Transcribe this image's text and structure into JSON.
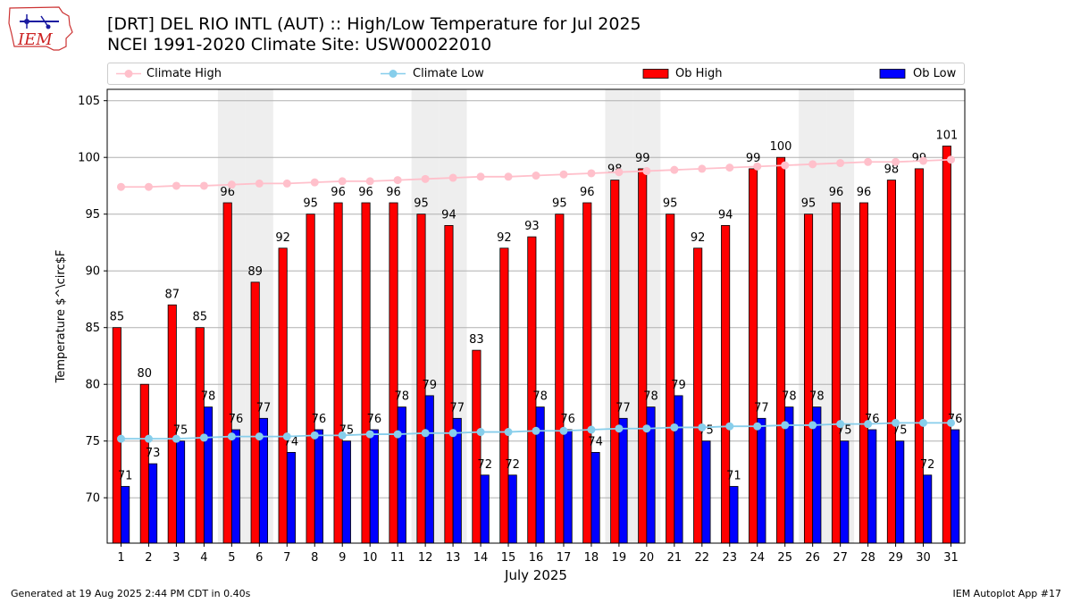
{
  "header": {
    "title": "[DRT] DEL RIO INTL (AUT) :: High/Low Temperature for Jul 2025",
    "subtitle": "NCEI 1991-2020 Climate Site: USW00022010",
    "logo_text": "IEM"
  },
  "footer": {
    "left": "Generated at 19 Aug 2025 2:44 PM CDT in 0.40s",
    "right": "IEM Autoplot App #17"
  },
  "legend": {
    "items": [
      {
        "label": "Climate High",
        "color": "#ffc0cb",
        "kind": "line"
      },
      {
        "label": "Climate Low",
        "color": "#87ceeb",
        "kind": "line"
      },
      {
        "label": "Ob High",
        "color": "#ff0000",
        "kind": "bar"
      },
      {
        "label": "Ob Low",
        "color": "#0000ff",
        "kind": "bar"
      }
    ]
  },
  "chart_data": {
    "type": "bar",
    "xlabel": "July 2025",
    "ylabel": "Temperature $^\\circ$F",
    "ylim": [
      66,
      106
    ],
    "yticks": [
      70,
      75,
      80,
      85,
      90,
      95,
      100,
      105
    ],
    "categories": [
      "1",
      "2",
      "3",
      "4",
      "5",
      "6",
      "7",
      "8",
      "9",
      "10",
      "11",
      "12",
      "13",
      "14",
      "15",
      "16",
      "17",
      "18",
      "19",
      "20",
      "21",
      "22",
      "23",
      "24",
      "25",
      "26",
      "27",
      "28",
      "29",
      "30",
      "31"
    ],
    "weekend_shading_days": [
      5,
      6,
      12,
      13,
      19,
      20,
      26,
      27
    ],
    "grid": "horizontal",
    "legend_position": "top",
    "series": [
      {
        "name": "Ob High",
        "type": "bar",
        "color": "#ff0000",
        "values": [
          85,
          80,
          87,
          85,
          96,
          89,
          92,
          95,
          96,
          96,
          96,
          95,
          94,
          83,
          92,
          93,
          95,
          96,
          98,
          99,
          95,
          92,
          94,
          99,
          100,
          95,
          96,
          96,
          98,
          99,
          101
        ]
      },
      {
        "name": "Ob Low",
        "type": "bar",
        "color": "#0000ff",
        "values": [
          71,
          73,
          75,
          78,
          76,
          77,
          74,
          76,
          75,
          76,
          78,
          79,
          77,
          72,
          72,
          78,
          76,
          74,
          77,
          78,
          79,
          75,
          71,
          77,
          78,
          78,
          75,
          76,
          75,
          72,
          76
        ]
      },
      {
        "name": "Climate High",
        "type": "line",
        "color": "#ffc0cb",
        "values": [
          97.4,
          97.4,
          97.5,
          97.5,
          97.6,
          97.7,
          97.7,
          97.8,
          97.9,
          97.9,
          98.0,
          98.1,
          98.2,
          98.3,
          98.3,
          98.4,
          98.5,
          98.6,
          98.7,
          98.8,
          98.9,
          99.0,
          99.1,
          99.2,
          99.3,
          99.4,
          99.5,
          99.6,
          99.6,
          99.7,
          99.8
        ]
      },
      {
        "name": "Climate Low",
        "type": "line",
        "color": "#87ceeb",
        "values": [
          75.2,
          75.2,
          75.2,
          75.3,
          75.4,
          75.4,
          75.4,
          75.5,
          75.5,
          75.6,
          75.6,
          75.7,
          75.7,
          75.8,
          75.8,
          75.9,
          75.9,
          76.0,
          76.1,
          76.1,
          76.2,
          76.2,
          76.3,
          76.3,
          76.4,
          76.4,
          76.5,
          76.5,
          76.6,
          76.6,
          76.6
        ]
      }
    ]
  }
}
